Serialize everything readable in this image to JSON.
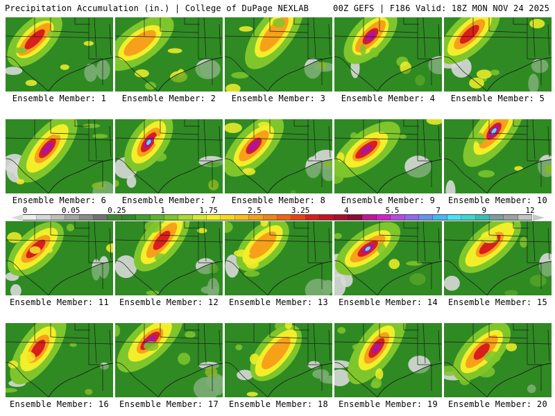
{
  "header": {
    "title": "Precipitation Accumulation (in.) | College of DuPage NEXLAB",
    "model_info": "00Z GEFS | F186 Valid: 18Z MON NOV 24 2025"
  },
  "colors": {
    "land": "#2f8a23",
    "light_precip": "#7fc62c",
    "moderate_precip": "#f2ef2a",
    "heavy_precip": "#f7a11a",
    "very_heavy_precip": "#d81f1b",
    "extreme_precip": "#b0129a",
    "peak_precip": "#48e4f5",
    "no_precip": "#d8d8d8",
    "borders": "#1a1a1a"
  },
  "legend": {
    "unit": "in.",
    "tick_labels": [
      "0",
      "0.05",
      "0.25",
      "1",
      "1.75",
      "2.5",
      "3.25",
      "4",
      "5.5",
      "7",
      "9",
      "12"
    ],
    "colors": [
      "#eeeeee",
      "#d6d6d6",
      "#bdbdbd",
      "#a4a4a4",
      "#8a8a8a",
      "#727272",
      "#3b8a30",
      "#2f8a23",
      "#3fa02c",
      "#5bb331",
      "#7fc62c",
      "#a7d92e",
      "#d2ea2d",
      "#f2ef2a",
      "#f7d624",
      "#f8bd20",
      "#f7a11a",
      "#f28417",
      "#ec6414",
      "#e54412",
      "#d81f1b",
      "#c41225",
      "#a80f2e",
      "#8d0b35",
      "#c0179a",
      "#d223c8",
      "#b84be8",
      "#8d6af0",
      "#6a8ff2",
      "#48b8f4",
      "#48e4f5",
      "#3fd6d0",
      "#38bcb4",
      "#7a9e9e",
      "#a0a0a0",
      "#c4c4c4"
    ]
  },
  "members": [
    {
      "label": "Ensemble Member: 1",
      "intensity": 2
    },
    {
      "label": "Ensemble Member: 2",
      "intensity": 1
    },
    {
      "label": "Ensemble Member: 3",
      "intensity": 1
    },
    {
      "label": "Ensemble Member: 4",
      "intensity": 3
    },
    {
      "label": "Ensemble Member: 5",
      "intensity": 2
    },
    {
      "label": "Ensemble Member: 6",
      "intensity": 3
    },
    {
      "label": "Ensemble Member: 7",
      "intensity": 4
    },
    {
      "label": "Ensemble Member: 8",
      "intensity": 3
    },
    {
      "label": "Ensemble Member: 9",
      "intensity": 3
    },
    {
      "label": "Ensemble Member: 10",
      "intensity": 4
    },
    {
      "label": "Ensemble Member: 11",
      "intensity": 2
    },
    {
      "label": "Ensemble Member: 12",
      "intensity": 2
    },
    {
      "label": "Ensemble Member: 13",
      "intensity": 1
    },
    {
      "label": "Ensemble Member: 14",
      "intensity": 4
    },
    {
      "label": "Ensemble Member: 15",
      "intensity": 2
    },
    {
      "label": "Ensemble Member: 16",
      "intensity": 2
    },
    {
      "label": "Ensemble Member: 17",
      "intensity": 3
    },
    {
      "label": "Ensemble Member: 18",
      "intensity": 1
    },
    {
      "label": "Ensemble Member: 19",
      "intensity": 3
    },
    {
      "label": "Ensemble Member: 20",
      "intensity": 2
    }
  ]
}
